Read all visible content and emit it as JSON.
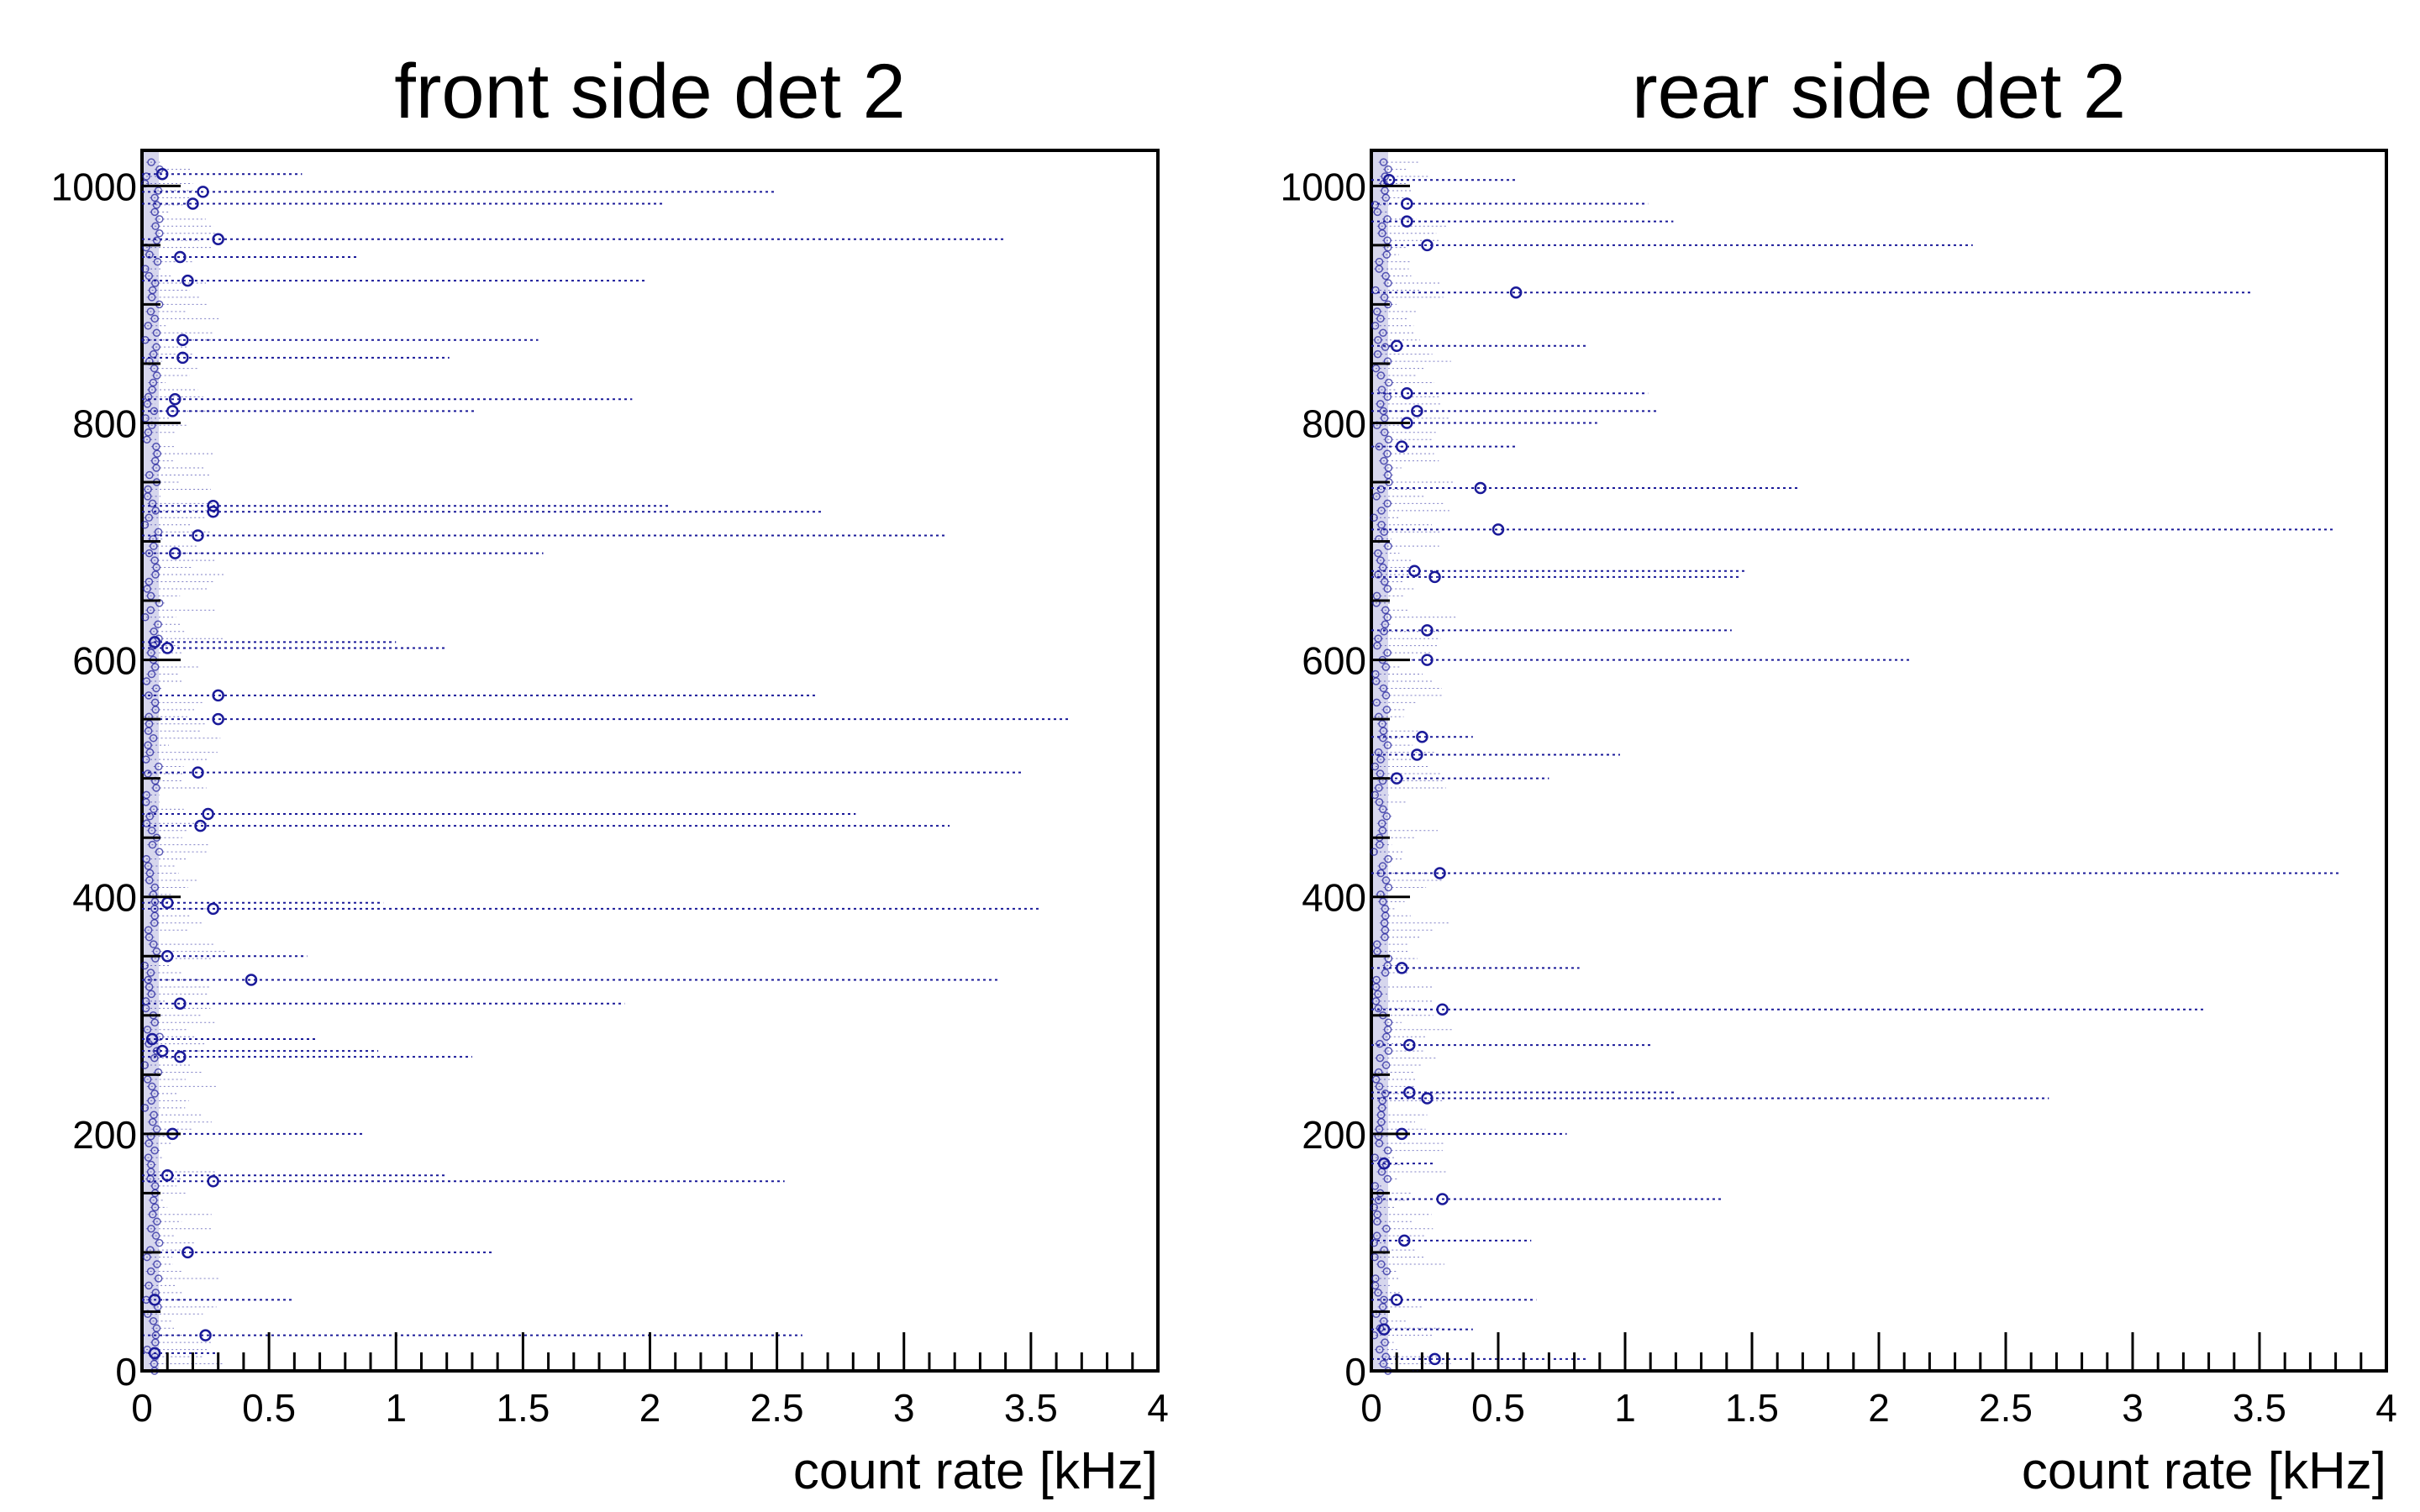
{
  "colors": {
    "marker": "#1a1a99",
    "axis": "#000000",
    "background": "#ffffff"
  },
  "chart_data": [
    {
      "type": "scatter",
      "title": "front side det 2",
      "xlabel": "count rate [kHz]",
      "ylabel": "",
      "xlim": [
        0,
        4
      ],
      "ylim": [
        0,
        1030
      ],
      "x_ticks": [
        "0",
        "0.5",
        "1",
        "1.5",
        "2",
        "2.5",
        "3",
        "3.5",
        "4"
      ],
      "y_ticks": [
        "0",
        "200",
        "400",
        "600",
        "800",
        "1000"
      ],
      "points": [
        {
          "y": 15,
          "x": 0.05,
          "err": 0.25
        },
        {
          "y": 30,
          "x": 0.25,
          "err": 2.35
        },
        {
          "y": 60,
          "x": 0.05,
          "err": 0.55
        },
        {
          "y": 100,
          "x": 0.18,
          "err": 1.2
        },
        {
          "y": 160,
          "x": 0.28,
          "err": 2.25
        },
        {
          "y": 165,
          "x": 0.1,
          "err": 1.1
        },
        {
          "y": 200,
          "x": 0.12,
          "err": 0.75
        },
        {
          "y": 265,
          "x": 0.15,
          "err": 1.15
        },
        {
          "y": 270,
          "x": 0.08,
          "err": 0.85
        },
        {
          "y": 280,
          "x": 0.04,
          "err": 0.65
        },
        {
          "y": 310,
          "x": 0.15,
          "err": 1.75
        },
        {
          "y": 330,
          "x": 0.43,
          "err": 2.95
        },
        {
          "y": 350,
          "x": 0.1,
          "err": 0.55
        },
        {
          "y": 390,
          "x": 0.28,
          "err": 3.25
        },
        {
          "y": 395,
          "x": 0.1,
          "err": 0.85
        },
        {
          "y": 460,
          "x": 0.23,
          "err": 2.95
        },
        {
          "y": 470,
          "x": 0.26,
          "err": 2.55
        },
        {
          "y": 505,
          "x": 0.22,
          "err": 3.25
        },
        {
          "y": 550,
          "x": 0.3,
          "err": 3.35
        },
        {
          "y": 570,
          "x": 0.3,
          "err": 2.35
        },
        {
          "y": 610,
          "x": 0.1,
          "err": 1.1
        },
        {
          "y": 615,
          "x": 0.05,
          "err": 0.95
        },
        {
          "y": 690,
          "x": 0.13,
          "err": 1.45
        },
        {
          "y": 705,
          "x": 0.22,
          "err": 2.95
        },
        {
          "y": 725,
          "x": 0.28,
          "err": 2.4
        },
        {
          "y": 730,
          "x": 0.28,
          "err": 1.8
        },
        {
          "y": 810,
          "x": 0.12,
          "err": 1.2
        },
        {
          "y": 820,
          "x": 0.13,
          "err": 1.8
        },
        {
          "y": 855,
          "x": 0.16,
          "err": 1.05
        },
        {
          "y": 870,
          "x": 0.16,
          "err": 1.4
        },
        {
          "y": 920,
          "x": 0.18,
          "err": 1.8
        },
        {
          "y": 940,
          "x": 0.15,
          "err": 0.7
        },
        {
          "y": 955,
          "x": 0.3,
          "err": 3.1
        },
        {
          "y": 985,
          "x": 0.2,
          "err": 1.85
        },
        {
          "y": 995,
          "x": 0.24,
          "err": 2.25
        },
        {
          "y": 1010,
          "x": 0.08,
          "err": 0.55
        }
      ]
    },
    {
      "type": "scatter",
      "title": "rear side det 2",
      "xlabel": "count rate [kHz]",
      "ylabel": "",
      "xlim": [
        0,
        4
      ],
      "ylim": [
        0,
        1030
      ],
      "x_ticks": [
        "0",
        "0.5",
        "1",
        "1.5",
        "2",
        "2.5",
        "3",
        "3.5",
        "4"
      ],
      "y_ticks": [
        "0",
        "200",
        "400",
        "600",
        "800",
        "1000"
      ],
      "points": [
        {
          "y": 10,
          "x": 0.25,
          "err": 0.6
        },
        {
          "y": 35,
          "x": 0.05,
          "err": 0.35
        },
        {
          "y": 60,
          "x": 0.1,
          "err": 0.55
        },
        {
          "y": 110,
          "x": 0.13,
          "err": 0.5
        },
        {
          "y": 145,
          "x": 0.28,
          "err": 1.1
        },
        {
          "y": 175,
          "x": 0.05,
          "err": 0.2
        },
        {
          "y": 200,
          "x": 0.12,
          "err": 0.65
        },
        {
          "y": 230,
          "x": 0.22,
          "err": 2.45
        },
        {
          "y": 235,
          "x": 0.15,
          "err": 1.05
        },
        {
          "y": 275,
          "x": 0.15,
          "err": 0.95
        },
        {
          "y": 305,
          "x": 0.28,
          "err": 3.0
        },
        {
          "y": 340,
          "x": 0.12,
          "err": 0.7
        },
        {
          "y": 420,
          "x": 0.27,
          "err": 3.55
        },
        {
          "y": 500,
          "x": 0.1,
          "err": 0.6
        },
        {
          "y": 520,
          "x": 0.18,
          "err": 0.8
        },
        {
          "y": 535,
          "x": 0.2,
          "err": 0.2
        },
        {
          "y": 600,
          "x": 0.22,
          "err": 1.9
        },
        {
          "y": 625,
          "x": 0.22,
          "err": 1.2
        },
        {
          "y": 670,
          "x": 0.25,
          "err": 1.2
        },
        {
          "y": 675,
          "x": 0.17,
          "err": 1.3
        },
        {
          "y": 710,
          "x": 0.5,
          "err": 3.3
        },
        {
          "y": 745,
          "x": 0.43,
          "err": 1.25
        },
        {
          "y": 780,
          "x": 0.12,
          "err": 0.45
        },
        {
          "y": 800,
          "x": 0.14,
          "err": 0.75
        },
        {
          "y": 810,
          "x": 0.18,
          "err": 0.95
        },
        {
          "y": 825,
          "x": 0.14,
          "err": 0.95
        },
        {
          "y": 865,
          "x": 0.1,
          "err": 0.75
        },
        {
          "y": 910,
          "x": 0.57,
          "err": 2.9
        },
        {
          "y": 950,
          "x": 0.22,
          "err": 2.15
        },
        {
          "y": 970,
          "x": 0.14,
          "err": 1.05
        },
        {
          "y": 985,
          "x": 0.14,
          "err": 0.95
        },
        {
          "y": 1005,
          "x": 0.07,
          "err": 0.5
        }
      ]
    }
  ]
}
